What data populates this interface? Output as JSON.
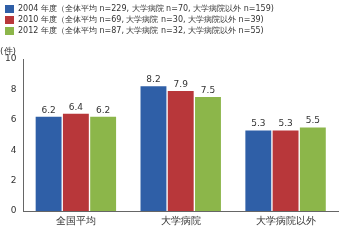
{
  "chart_data": {
    "type": "bar",
    "ylabel": "(件)",
    "categories": [
      "全国平均",
      "大学病院",
      "大学病院以外"
    ],
    "series": [
      {
        "name": "2004 年度（全体平均 n=229, 大学病院 n=70, 大学病院以外 n=159)",
        "color": "#2f5fa7",
        "values": [
          6.2,
          8.2,
          5.3
        ]
      },
      {
        "name": "2010 年度（全体平均 n=69, 大学病院 n=30, 大学病院以外 n=39)",
        "color": "#b8373a",
        "values": [
          6.4,
          7.9,
          5.3
        ]
      },
      {
        "name": "2012 年度（全体平均 n=87, 大学病院 n=32, 大学病院以外 n=55)",
        "color": "#8cb64a",
        "values": [
          6.2,
          7.5,
          5.5
        ]
      }
    ],
    "ylim": [
      0,
      10
    ],
    "yticks": [
      0,
      2,
      4,
      6,
      8,
      10
    ],
    "grid": false,
    "legend": "top-left",
    "data_labels": true
  }
}
